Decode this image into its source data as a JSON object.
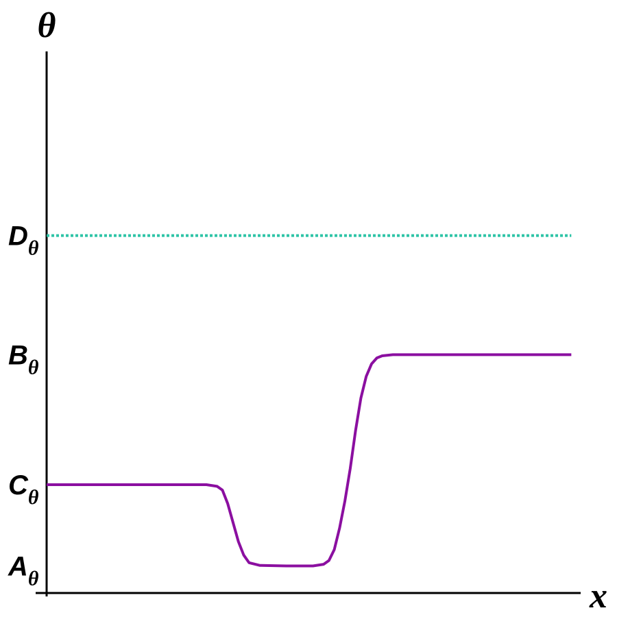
{
  "chart_data": {
    "type": "line",
    "y_label": "θ",
    "x_label": "x",
    "xlim": [
      0,
      100
    ],
    "ylim": [
      0,
      100
    ],
    "grid": false,
    "yticks": [
      {
        "value": 66,
        "label": "D",
        "subscript": "θ"
      },
      {
        "value": 44,
        "label": "B",
        "subscript": "θ"
      },
      {
        "value": 20,
        "label": "C",
        "subscript": "θ"
      },
      {
        "value": 5,
        "label": "A",
        "subscript": "θ"
      }
    ],
    "series": [
      {
        "color": "#8b0fa0",
        "style": "solid",
        "x": [
          0,
          10,
          20,
          30,
          32,
          33,
          34,
          35,
          36,
          37,
          38,
          40,
          45,
          50,
          52,
          53,
          54,
          55,
          56,
          57,
          58,
          59,
          60,
          61,
          62,
          63,
          65,
          70,
          80,
          90,
          98.5
        ],
        "values": [
          20,
          20,
          20,
          20,
          19.7,
          19,
          16.5,
          13,
          9.5,
          7,
          5.6,
          5.1,
          5,
          5,
          5.3,
          6,
          8,
          12,
          17,
          23,
          30,
          36,
          40,
          42.3,
          43.4,
          43.8,
          44,
          44,
          44,
          44,
          44
        ]
      },
      {
        "color": "#2ec4a6",
        "style": "dotted",
        "x": [
          0,
          98.5
        ],
        "values": [
          66,
          66
        ]
      }
    ]
  }
}
